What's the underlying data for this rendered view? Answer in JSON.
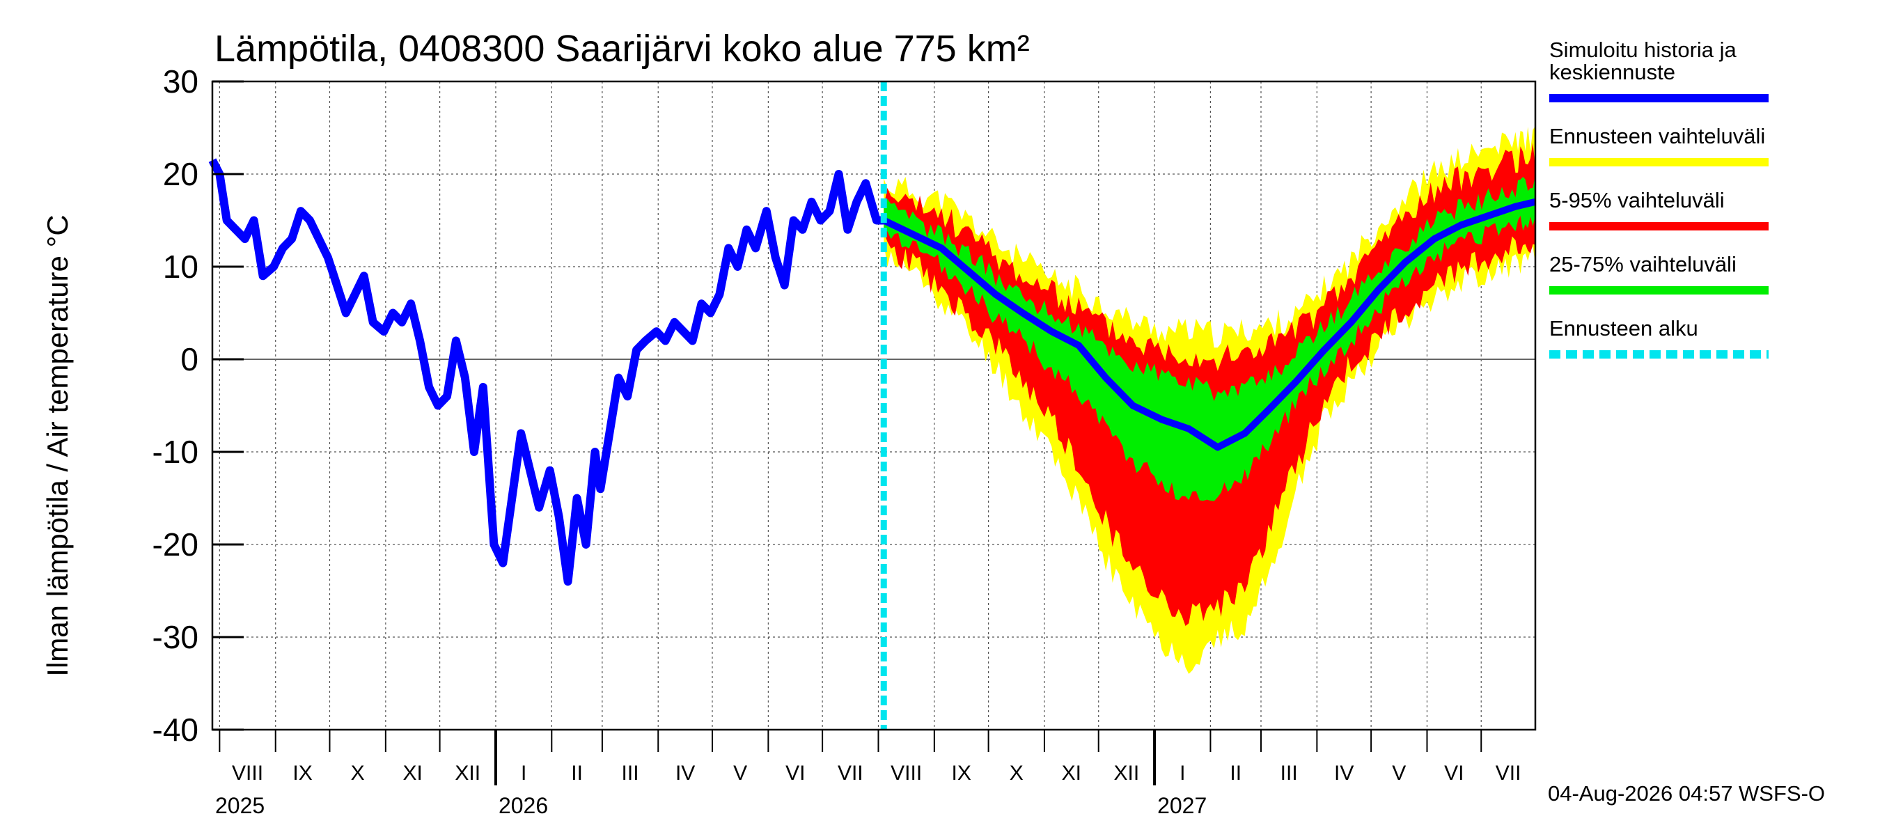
{
  "chart_data": {
    "type": "line",
    "title": "Lämpötila, 0408300 Saarijärvi koko alue 775 km²",
    "ylabel": "Ilman lämpötila / Air temperature   °C",
    "ylim": [
      -40,
      30
    ],
    "yticks": [
      30,
      20,
      10,
      0,
      -10,
      -20,
      -30,
      -40
    ],
    "x_range": [
      "2025-07-28",
      "2027-07-31"
    ],
    "forecast_start": "2026-08-04",
    "months": [
      {
        "label": "VIII",
        "start": "2025-08-01"
      },
      {
        "label": "IX",
        "start": "2025-09-01"
      },
      {
        "label": "X",
        "start": "2025-10-01"
      },
      {
        "label": "XI",
        "start": "2025-11-01"
      },
      {
        "label": "XII",
        "start": "2025-12-01"
      },
      {
        "label": "I",
        "start": "2026-01-01"
      },
      {
        "label": "II",
        "start": "2026-02-01"
      },
      {
        "label": "III",
        "start": "2026-03-01"
      },
      {
        "label": "IV",
        "start": "2026-04-01"
      },
      {
        "label": "V",
        "start": "2026-05-01"
      },
      {
        "label": "VI",
        "start": "2026-06-01"
      },
      {
        "label": "VII",
        "start": "2026-07-01"
      },
      {
        "label": "VIII",
        "start": "2026-08-01"
      },
      {
        "label": "IX",
        "start": "2026-09-01"
      },
      {
        "label": "X",
        "start": "2026-10-01"
      },
      {
        "label": "XI",
        "start": "2026-11-01"
      },
      {
        "label": "XII",
        "start": "2026-12-01"
      },
      {
        "label": "I",
        "start": "2027-01-01"
      },
      {
        "label": "II",
        "start": "2027-02-01"
      },
      {
        "label": "III",
        "start": "2027-03-01"
      },
      {
        "label": "IV",
        "start": "2027-04-01"
      },
      {
        "label": "V",
        "start": "2027-05-01"
      },
      {
        "label": "VI",
        "start": "2027-06-01"
      },
      {
        "label": "VII",
        "start": "2027-07-01"
      }
    ],
    "years": [
      {
        "label": "2025",
        "date": "2025-07-28"
      },
      {
        "label": "2026",
        "date": "2026-01-01"
      },
      {
        "label": "2027",
        "date": "2027-01-01"
      }
    ],
    "history": {
      "name": "Simuloitu historia ja keskiennuste",
      "color": "#0000ff",
      "points": [
        [
          "2025-07-28",
          21.5
        ],
        [
          "2025-08-01",
          20
        ],
        [
          "2025-08-05",
          15
        ],
        [
          "2025-08-10",
          14
        ],
        [
          "2025-08-15",
          13
        ],
        [
          "2025-08-20",
          15
        ],
        [
          "2025-08-25",
          9
        ],
        [
          "2025-08-31",
          10
        ],
        [
          "2025-09-05",
          12
        ],
        [
          "2025-09-10",
          13
        ],
        [
          "2025-09-15",
          16
        ],
        [
          "2025-09-20",
          15
        ],
        [
          "2025-09-25",
          13
        ],
        [
          "2025-09-30",
          11
        ],
        [
          "2025-10-05",
          8
        ],
        [
          "2025-10-10",
          5
        ],
        [
          "2025-10-15",
          7
        ],
        [
          "2025-10-20",
          9
        ],
        [
          "2025-10-25",
          4
        ],
        [
          "2025-10-31",
          3
        ],
        [
          "2025-11-05",
          5
        ],
        [
          "2025-11-10",
          4
        ],
        [
          "2025-11-15",
          6
        ],
        [
          "2025-11-20",
          2
        ],
        [
          "2025-11-25",
          -3
        ],
        [
          "2025-11-30",
          -5
        ],
        [
          "2025-12-05",
          -4
        ],
        [
          "2025-12-10",
          2
        ],
        [
          "2025-12-15",
          -2
        ],
        [
          "2025-12-20",
          -10
        ],
        [
          "2025-12-25",
          -3
        ],
        [
          "2025-12-31",
          -20
        ],
        [
          "2026-01-05",
          -22
        ],
        [
          "2026-01-10",
          -15
        ],
        [
          "2026-01-15",
          -8
        ],
        [
          "2026-01-20",
          -12
        ],
        [
          "2026-01-25",
          -16
        ],
        [
          "2026-01-31",
          -12
        ],
        [
          "2026-02-05",
          -17
        ],
        [
          "2026-02-10",
          -24
        ],
        [
          "2026-02-15",
          -15
        ],
        [
          "2026-02-20",
          -20
        ],
        [
          "2026-02-25",
          -10
        ],
        [
          "2026-02-28",
          -14
        ],
        [
          "2026-03-05",
          -8
        ],
        [
          "2026-03-10",
          -2
        ],
        [
          "2026-03-15",
          -4
        ],
        [
          "2026-03-20",
          1
        ],
        [
          "2026-03-25",
          2
        ],
        [
          "2026-03-31",
          3
        ],
        [
          "2026-04-05",
          2
        ],
        [
          "2026-04-10",
          4
        ],
        [
          "2026-04-15",
          3
        ],
        [
          "2026-04-20",
          2
        ],
        [
          "2026-04-25",
          6
        ],
        [
          "2026-04-30",
          5
        ],
        [
          "2026-05-05",
          7
        ],
        [
          "2026-05-10",
          12
        ],
        [
          "2026-05-15",
          10
        ],
        [
          "2026-05-20",
          14
        ],
        [
          "2026-05-25",
          12
        ],
        [
          "2026-05-31",
          16
        ],
        [
          "2026-06-05",
          11
        ],
        [
          "2026-06-10",
          8
        ],
        [
          "2026-06-15",
          15
        ],
        [
          "2026-06-20",
          14
        ],
        [
          "2026-06-25",
          17
        ],
        [
          "2026-06-30",
          15
        ],
        [
          "2026-07-05",
          16
        ],
        [
          "2026-07-10",
          20
        ],
        [
          "2026-07-15",
          14
        ],
        [
          "2026-07-20",
          17
        ],
        [
          "2026-07-25",
          19
        ],
        [
          "2026-07-31",
          15
        ],
        [
          "2026-08-04",
          15
        ]
      ]
    },
    "forecast": {
      "dates": [
        "2026-08-04",
        "2026-08-20",
        "2026-09-05",
        "2026-09-20",
        "2026-10-05",
        "2026-10-20",
        "2026-11-05",
        "2026-11-20",
        "2026-12-05",
        "2026-12-20",
        "2027-01-05",
        "2027-01-20",
        "2027-02-05",
        "2027-02-20",
        "2027-03-05",
        "2027-03-20",
        "2027-04-05",
        "2027-04-20",
        "2027-05-05",
        "2027-05-20",
        "2027-06-05",
        "2027-06-20",
        "2027-07-05",
        "2027-07-20",
        "2027-07-31"
      ],
      "median": [
        15,
        13.5,
        12,
        9.5,
        7,
        5,
        3,
        1.5,
        -2,
        -5,
        -6.5,
        -7.5,
        -9.5,
        -8,
        -5.5,
        -2.5,
        1,
        4,
        7.5,
        10.5,
        13,
        14.5,
        15.5,
        16.5,
        17
      ],
      "p25": [
        14,
        12.5,
        10.5,
        8,
        5,
        2.5,
        -0.5,
        -3,
        -7,
        -10.5,
        -13,
        -14.5,
        -14,
        -12,
        -8.5,
        -4.5,
        -0.5,
        2.5,
        6,
        9,
        11.5,
        13,
        14,
        15,
        15.5
      ],
      "p75": [
        16,
        14.5,
        13,
        11,
        8.5,
        6.5,
        4.5,
        3,
        1,
        -1,
        -2,
        -3,
        -4,
        -3.5,
        -2.5,
        0,
        3,
        6,
        9.5,
        12,
        14.5,
        16,
        17,
        18,
        18.5
      ],
      "p5": [
        13,
        11,
        8,
        5,
        2,
        -2,
        -6,
        -11,
        -17,
        -22,
        -25,
        -27,
        -26,
        -24,
        -18,
        -11,
        -4,
        0,
        3,
        6,
        9,
        10.5,
        11.5,
        12.5,
        13
      ],
      "p95": [
        17,
        16,
        15,
        13,
        10.5,
        8.5,
        6.5,
        5,
        3,
        1.5,
        0.5,
        0,
        -0.5,
        0,
        1,
        2.5,
        5,
        8,
        12,
        15,
        17.5,
        19,
        20,
        21,
        21.5
      ],
      "min": [
        12,
        10,
        7,
        3.5,
        0,
        -5,
        -9,
        -15,
        -21,
        -26,
        -30,
        -32,
        -30,
        -28,
        -23,
        -14,
        -6,
        -1.5,
        2,
        5,
        7.5,
        9,
        10,
        11,
        11.5
      ],
      "max": [
        18.5,
        17.5,
        16.5,
        14.5,
        12,
        10,
        8,
        7,
        5,
        3.5,
        2.5,
        2.5,
        2,
        2.5,
        3,
        4,
        7,
        10,
        14,
        17,
        19.5,
        21,
        22,
        23,
        23.5
      ]
    },
    "legend": {
      "placement": "right",
      "entries": [
        {
          "name": "Simuloitu historia ja",
          "name2": "keskiennuste",
          "color": "#0000ff",
          "style": "solid"
        },
        {
          "name": "Ennusteen vaihteluväli",
          "color": "#ffff00",
          "style": "solid"
        },
        {
          "name": "5-95% vaihteluväli",
          "color": "#ff0000",
          "style": "solid"
        },
        {
          "name": "25-75% vaihteluväli",
          "color": "#00ee00",
          "style": "solid"
        },
        {
          "name": "Ennusteen alku",
          "color": "#00e5ee",
          "style": "dashed"
        }
      ]
    },
    "grid": true,
    "zero_line": true,
    "footer": "04-Aug-2026 04:57 WSFS-O"
  }
}
